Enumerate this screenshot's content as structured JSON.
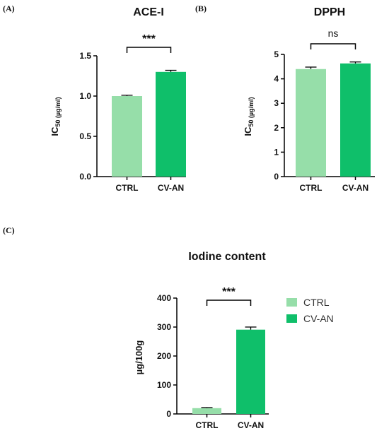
{
  "colors": {
    "ctrl": "#96dea9",
    "cvan": "#0fbf6a",
    "axis": "#000000"
  },
  "chart_data": [
    {
      "panel": "(A)",
      "type": "bar",
      "title": "ACE-I",
      "ylabel_main": "IC",
      "ylabel_sub": "50 (µg/ml)",
      "categories": [
        "CTRL",
        "CV-AN"
      ],
      "values": [
        1.0,
        1.3
      ],
      "errors": [
        0.01,
        0.02
      ],
      "ylim": [
        0,
        1.5
      ],
      "yticks": [
        0,
        0.5,
        1.0,
        1.5
      ],
      "ytick_labels": [
        "0.0",
        "0.5",
        "1.0",
        "1.5"
      ],
      "significance": "***",
      "legend": false
    },
    {
      "panel": "(B)",
      "type": "bar",
      "title": "DPPH",
      "ylabel_main": "IC",
      "ylabel_sub": "50 (µg/ml)",
      "categories": [
        "CTRL",
        "CV-AN"
      ],
      "values": [
        4.4,
        4.63
      ],
      "errors": [
        0.08,
        0.06
      ],
      "ylim": [
        0,
        5
      ],
      "yticks": [
        0,
        1,
        2,
        3,
        4,
        5
      ],
      "ytick_labels": [
        "0",
        "1",
        "2",
        "3",
        "4",
        "5"
      ],
      "significance": "ns",
      "legend": false
    },
    {
      "panel": "(C)",
      "type": "bar",
      "title": "Iodine content",
      "ylabel_main": "µg/100g",
      "ylabel_sub": "",
      "categories": [
        "CTRL",
        "CV-AN"
      ],
      "values": [
        20,
        291
      ],
      "errors": [
        2,
        9
      ],
      "ylim": [
        0,
        400
      ],
      "yticks": [
        0,
        100,
        200,
        300,
        400
      ],
      "ytick_labels": [
        "0",
        "100",
        "200",
        "300",
        "400"
      ],
      "significance": "***",
      "legend": true,
      "legend_placement": "right",
      "legend_entries": [
        "CTRL",
        "CV-AN"
      ]
    }
  ]
}
